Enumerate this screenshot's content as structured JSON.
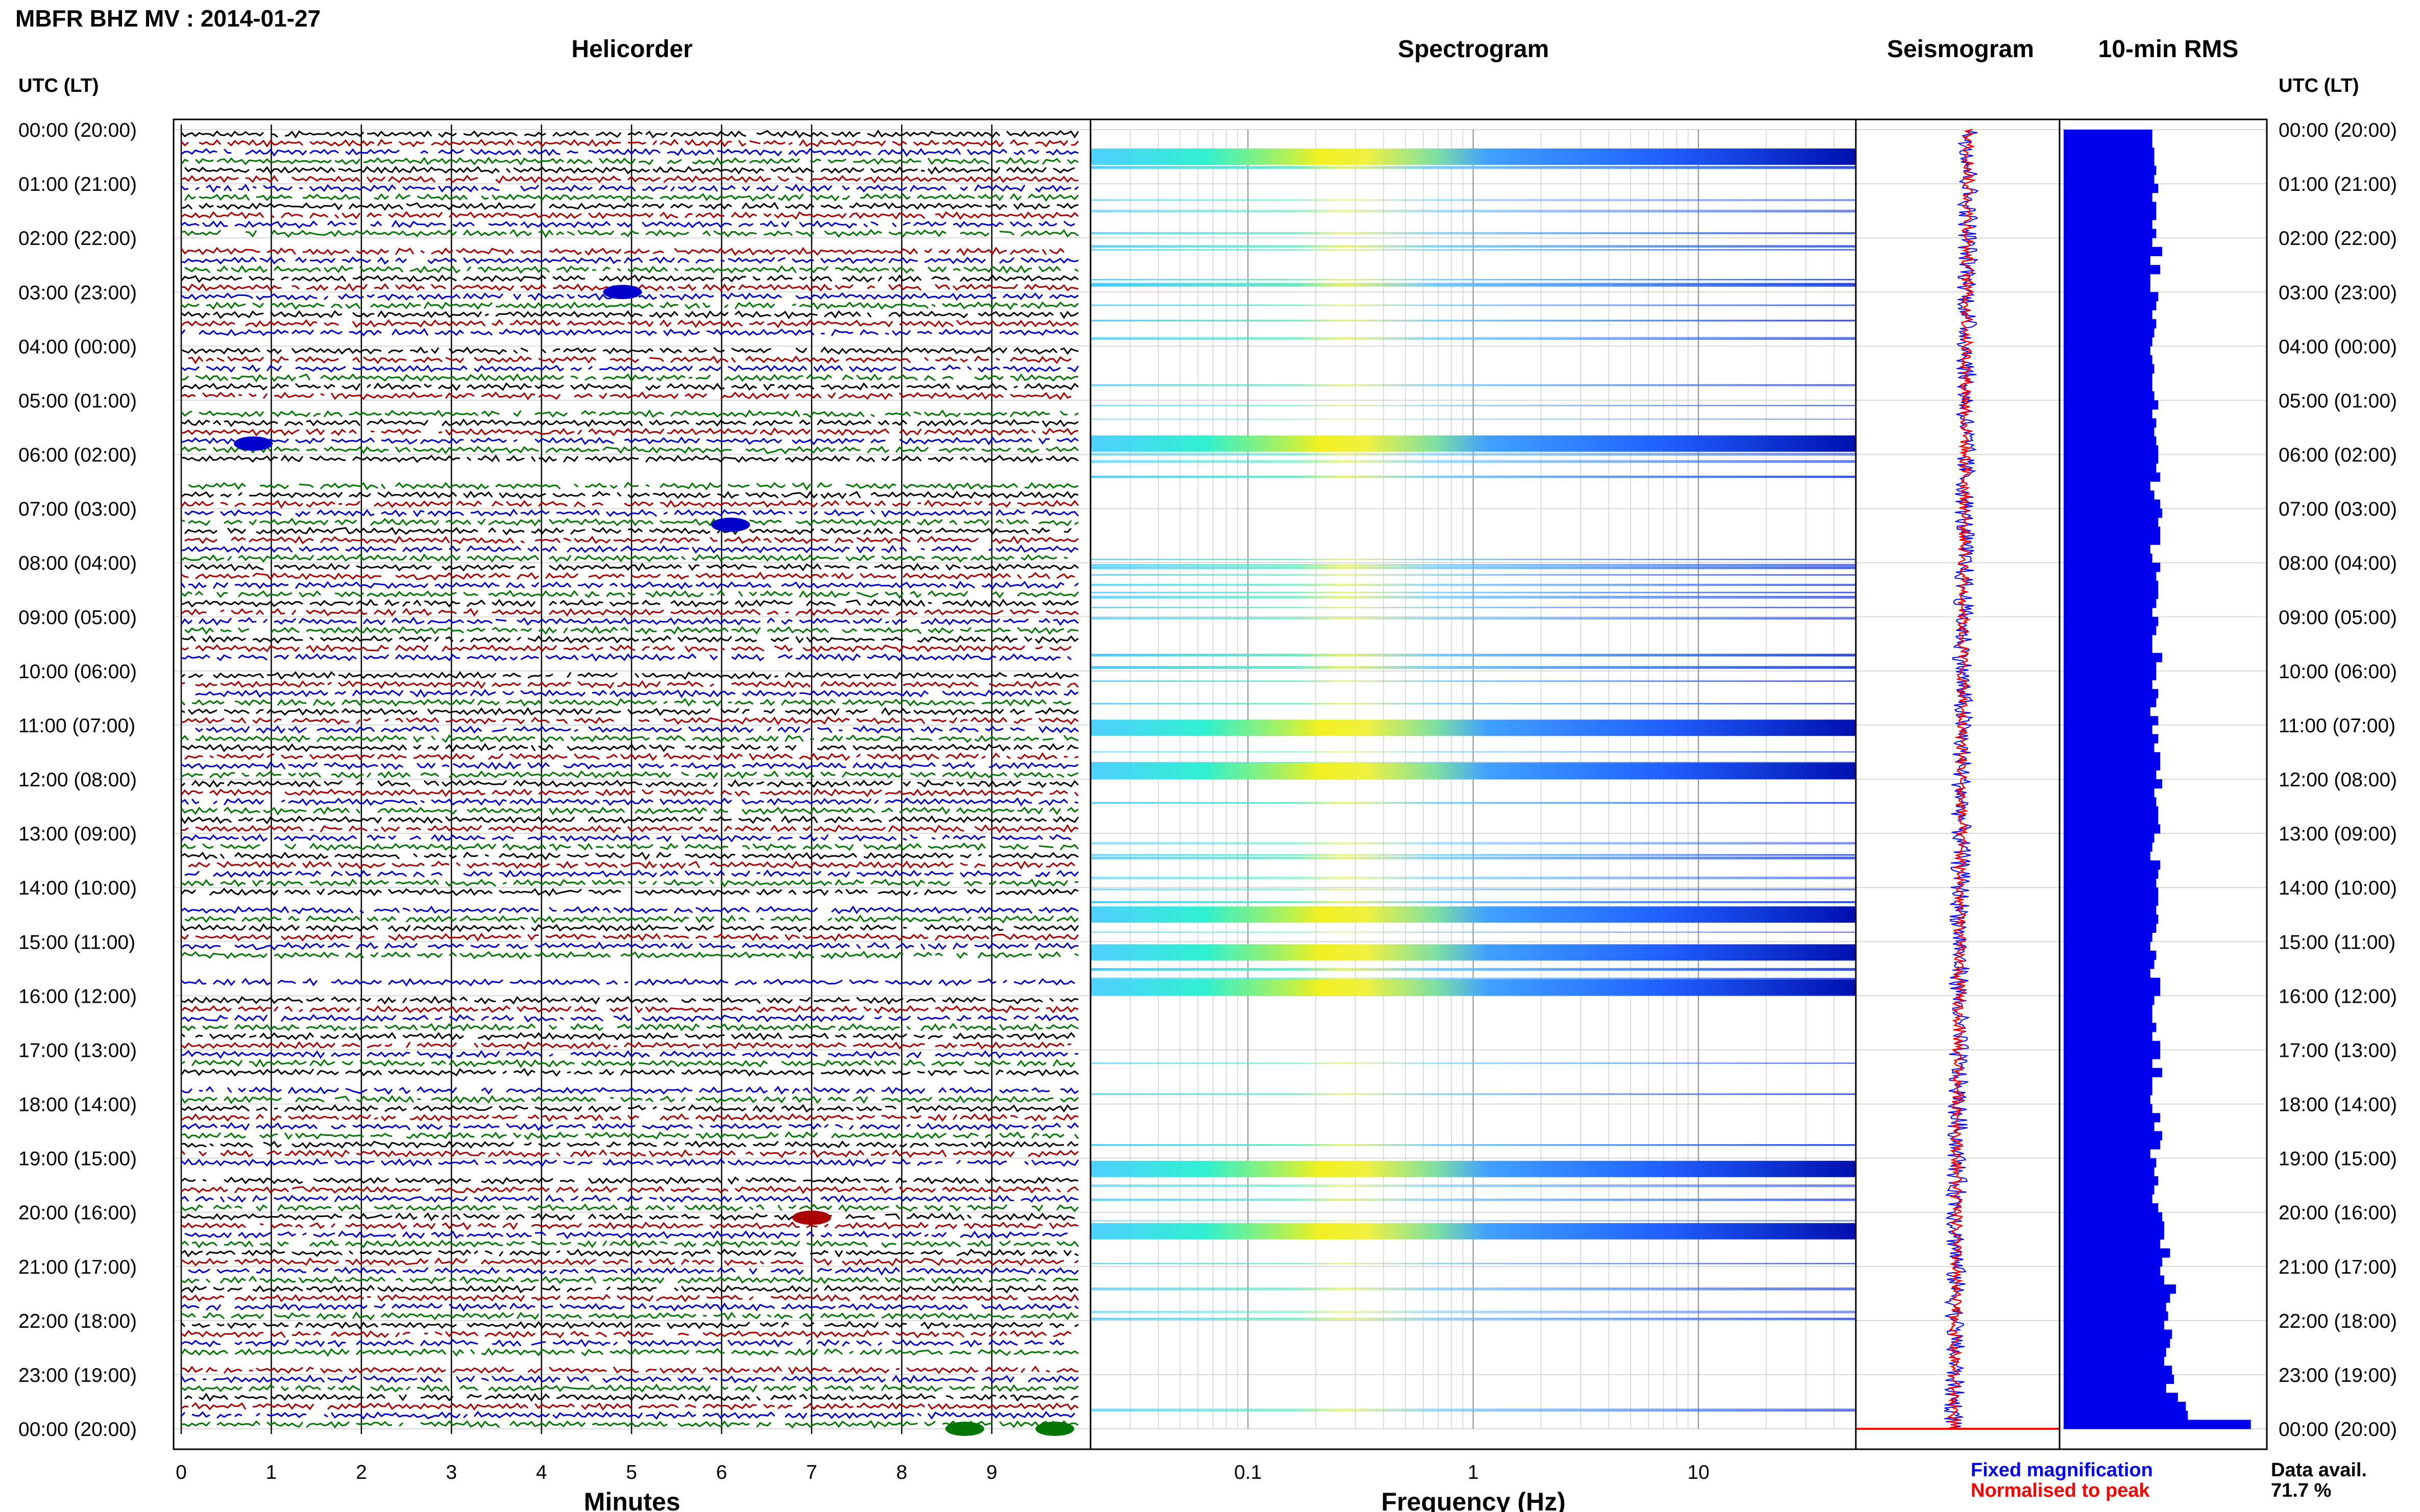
{
  "station_title": "MBFR BHZ MV : 2014-01-27",
  "colors": {
    "trace_cycle": [
      "#000000",
      "#aa0000",
      "#0000cc",
      "#007700"
    ],
    "rms": "#0000ee",
    "fixed": "#0000ff",
    "normalised": "#ff0000"
  },
  "chart_data": [
    {
      "type": "line",
      "name": "helicorder",
      "title": "Helicorder",
      "xlabel": "Minutes",
      "xlim": [
        0,
        10
      ],
      "x_ticks": [
        "0",
        "1",
        "2",
        "3",
        "4",
        "5",
        "6",
        "7",
        "8",
        "9"
      ],
      "row_minutes": 10,
      "left_axis_label": "UTC (LT)",
      "y_ticks": [
        "00:00 (20:00)",
        "01:00 (21:00)",
        "02:00 (22:00)",
        "03:00 (23:00)",
        "04:00 (00:00)",
        "05:00 (01:00)",
        "06:00 (02:00)",
        "07:00 (03:00)",
        "08:00 (04:00)",
        "09:00 (05:00)",
        "10:00 (06:00)",
        "11:00 (07:00)",
        "12:00 (08:00)",
        "13:00 (09:00)",
        "14:00 (10:00)",
        "15:00 (11:00)",
        "16:00 (12:00)",
        "17:00 (13:00)",
        "18:00 (14:00)",
        "19:00 (15:00)",
        "20:00 (16:00)",
        "21:00 (17:00)",
        "22:00 (18:00)",
        "23:00 (19:00)",
        "00:00 (20:00)"
      ]
    },
    {
      "type": "heatmap",
      "name": "spectrogram",
      "title": "Spectrogram",
      "xlabel": "Frequency (Hz)",
      "x_scale": "log",
      "xlim": [
        0.02,
        50
      ],
      "x_ticks": [
        {
          "value": 0.1,
          "label": "0.1"
        },
        {
          "value": 1,
          "label": "1"
        },
        {
          "value": 10,
          "label": "10"
        }
      ],
      "strong_bands_utc_hours": [
        0.5,
        5.8,
        11.05,
        11.85,
        14.5,
        15.2,
        15.85,
        19.2,
        20.35
      ],
      "peak_frequency_hz": 0.25
    },
    {
      "type": "line",
      "name": "seismogram",
      "title": "Seismogram",
      "legend": [
        "Fixed magnification",
        "Normalised to peak"
      ]
    },
    {
      "type": "bar",
      "name": "rms",
      "title": "10-min RMS",
      "right_axis_label": "UTC (LT)",
      "interval_minutes": 10,
      "count": 144,
      "relative_values_approx": [
        0.45,
        0.45,
        0.46,
        0.46,
        0.47,
        0.46,
        0.48,
        0.45,
        0.47,
        0.47,
        0.45,
        0.47,
        0.45,
        0.5,
        0.44,
        0.49,
        0.44,
        0.44,
        0.48,
        0.47,
        0.45,
        0.47,
        0.46,
        0.45,
        0.44,
        0.45,
        0.46,
        0.45,
        0.45,
        0.46,
        0.48,
        0.45,
        0.47,
        0.46,
        0.47,
        0.48,
        0.48,
        0.47,
        0.49,
        0.44,
        0.46,
        0.49,
        0.5,
        0.48,
        0.49,
        0.49,
        0.44,
        0.45,
        0.49,
        0.47,
        0.48,
        0.48,
        0.47,
        0.45,
        0.48,
        0.47,
        0.45,
        0.45,
        0.5,
        0.47,
        0.47,
        0.45,
        0.48,
        0.47,
        0.44,
        0.48,
        0.45,
        0.48,
        0.46,
        0.49,
        0.49,
        0.47,
        0.5,
        0.46,
        0.47,
        0.48,
        0.48,
        0.49,
        0.46,
        0.45,
        0.44,
        0.49,
        0.48,
        0.47,
        0.48,
        0.48,
        0.47,
        0.48,
        0.47,
        0.45,
        0.44,
        0.47,
        0.46,
        0.44,
        0.49,
        0.49,
        0.46,
        0.45,
        0.45,
        0.47,
        0.45,
        0.49,
        0.49,
        0.45,
        0.5,
        0.45,
        0.45,
        0.44,
        0.45,
        0.49,
        0.46,
        0.5,
        0.49,
        0.44,
        0.47,
        0.46,
        0.48,
        0.46,
        0.45,
        0.48,
        0.5,
        0.51,
        0.51,
        0.49,
        0.54,
        0.5,
        0.49,
        0.51,
        0.57,
        0.54,
        0.52,
        0.53,
        0.51,
        0.55,
        0.54,
        0.52,
        0.51,
        0.55,
        0.56,
        0.52,
        0.58,
        0.62,
        0.63,
        0.95
      ]
    }
  ],
  "legend": {
    "fixed": "Fixed magnification",
    "normalised": "Normalised to peak"
  },
  "data_avail": {
    "label": "Data avail.",
    "value": "71.7 %"
  }
}
